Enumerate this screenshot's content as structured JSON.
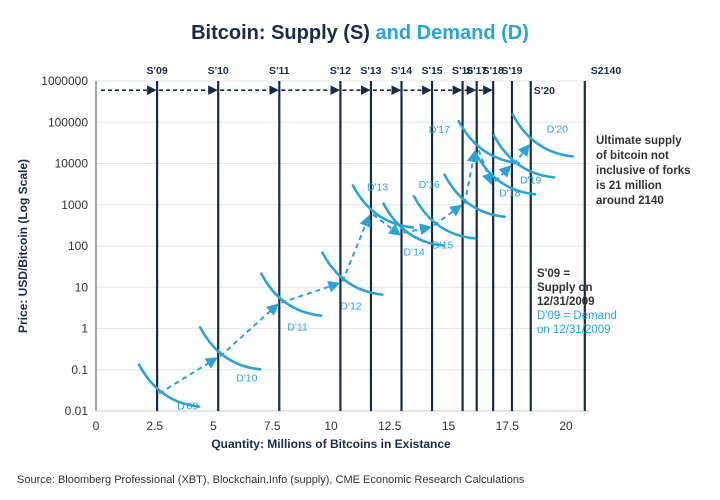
{
  "title": {
    "main": "Bitcoin: Supply (S)",
    "accent": "and Demand (D)"
  },
  "source": "Source: Bloomberg Professional (XBT), Blockchain.Info (supply), CME Economic Research Calculations",
  "colors": {
    "supply": "#1a2b47",
    "demand": "#2aa3d6",
    "grid": "#e4e6ea",
    "text": "#333333"
  },
  "chart_data": {
    "type": "line",
    "title": "Bitcoin: Supply (S) and Demand (D)",
    "xlabel": "Quantity: Millions of Bitcoins in Existance",
    "ylabel": "Price: USD/Bitcoin (Log Scale)",
    "xlim": [
      0,
      21
    ],
    "ylim": [
      0.01,
      1000000
    ],
    "yscale": "log",
    "grid": true,
    "x_ticks": [
      0,
      2.5,
      5,
      7.5,
      10,
      12.5,
      15,
      17.5,
      20
    ],
    "x_tick_labels": [
      "0",
      "2.5",
      "5",
      "7.5",
      "10",
      "12.5",
      "15",
      "17.5",
      "20"
    ],
    "y_ticks": [
      0.01,
      0.1,
      1,
      10,
      100,
      1000,
      10000,
      100000,
      1000000
    ],
    "y_tick_labels": [
      "0.01",
      "0.1",
      "1",
      "10",
      "100",
      "1000",
      "10000",
      "100000",
      "1000000"
    ],
    "supply": [
      {
        "label": "S'09",
        "q": 2.6
      },
      {
        "label": "S'10",
        "q": 5.2
      },
      {
        "label": "S'11",
        "q": 7.8
      },
      {
        "label": "S'12",
        "q": 10.4
      },
      {
        "label": "S'13",
        "q": 11.7
      },
      {
        "label": "S'14",
        "q": 13.0
      },
      {
        "label": "S'15",
        "q": 14.3
      },
      {
        "label": "S'16",
        "q": 15.6
      },
      {
        "label": "S'17",
        "q": 16.2
      },
      {
        "label": "S'18",
        "q": 16.9
      },
      {
        "label": "S'19",
        "q": 17.7
      },
      {
        "label": "S'20",
        "q": 18.5
      },
      {
        "label": "S2140",
        "q": 20.8
      }
    ],
    "demand": [
      {
        "label": "D'09",
        "q": 2.6,
        "price": 0.025
      },
      {
        "label": "D'10",
        "q": 5.2,
        "price": 0.2
      },
      {
        "label": "D'11",
        "q": 7.8,
        "price": 4
      },
      {
        "label": "D'12",
        "q": 10.4,
        "price": 13
      },
      {
        "label": "D'13",
        "q": 11.7,
        "price": 550
      },
      {
        "label": "D'14",
        "q": 13.0,
        "price": 200
      },
      {
        "label": "D'15",
        "q": 14.3,
        "price": 300
      },
      {
        "label": "D'16",
        "q": 15.6,
        "price": 1000
      },
      {
        "label": "D'17",
        "q": 16.2,
        "price": 20000
      },
      {
        "label": "D'18",
        "q": 16.9,
        "price": 3500
      },
      {
        "label": "D'19",
        "q": 17.7,
        "price": 9000
      },
      {
        "label": "D'20",
        "q": 18.5,
        "price": 29000
      }
    ],
    "supply_arrows_price": 600000,
    "annotations": [
      {
        "id": "ultimate",
        "lines": [
          "Ultimate supply",
          "of bitcoin not",
          "inclusive of forks",
          "is 21 million",
          "around 2140"
        ]
      },
      {
        "id": "s-def",
        "lines": [
          "S'09 =",
          "Supply on",
          "12/31/2009"
        ]
      },
      {
        "id": "d-def",
        "lines": [
          "D'09 = Demand",
          "on 12/31/2009"
        ]
      }
    ]
  }
}
